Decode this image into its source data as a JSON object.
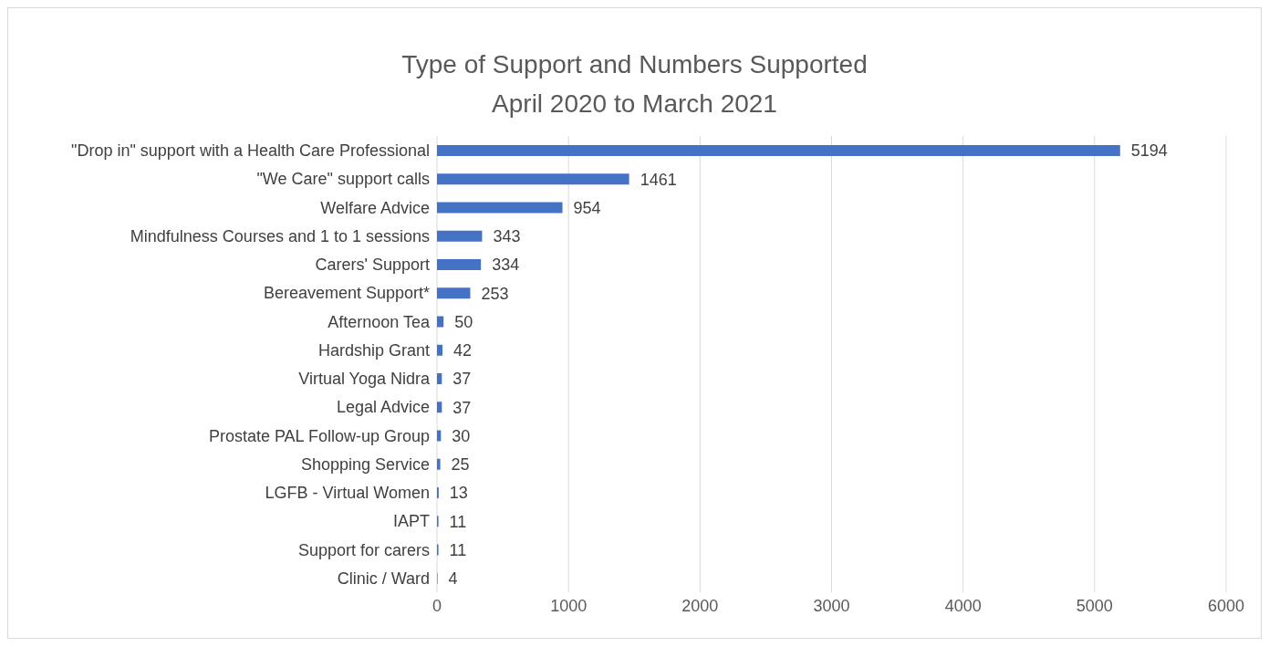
{
  "chart_data": {
    "type": "bar",
    "orientation": "horizontal",
    "title": "Type of Support and Numbers Supported\nApril 2020 to March 2021",
    "categories": [
      "\"Drop in\" support with a Health Care Professional",
      "\"We Care\" support calls",
      "Welfare Advice",
      "Mindfulness Courses and 1 to 1 sessions",
      "Carers' Support",
      "Bereavement Support*",
      "Afternoon Tea",
      "Hardship Grant",
      "Virtual Yoga Nidra",
      "Legal Advice",
      "Prostate PAL Follow-up Group",
      "Shopping Service",
      "LGFB - Virtual Women",
      "IAPT",
      "Support for carers",
      "Clinic / Ward"
    ],
    "values": [
      5194,
      1461,
      954,
      343,
      334,
      253,
      50,
      42,
      37,
      37,
      30,
      25,
      13,
      11,
      11,
      4
    ],
    "color": "#4472c4",
    "xlim": [
      0,
      6000
    ],
    "xticks": [
      0,
      1000,
      2000,
      3000,
      4000,
      5000,
      6000
    ],
    "grid": "x",
    "data_labels": true
  }
}
